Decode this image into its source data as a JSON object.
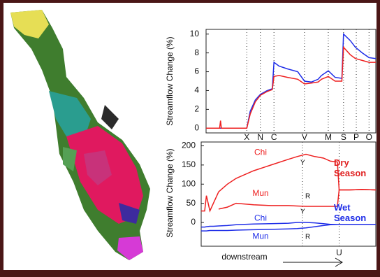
{
  "chart_data": [
    {
      "type": "line",
      "ylabel": "Streamflow Change (%)",
      "xlim": [
        0,
        100
      ],
      "ylim": [
        -0.5,
        10.5
      ],
      "yticks": [
        0,
        2,
        4,
        6,
        8,
        10
      ],
      "xticks": [
        {
          "value": 24,
          "label": "X"
        },
        {
          "value": 32,
          "label": "N"
        },
        {
          "value": 40,
          "label": "C"
        },
        {
          "value": 58,
          "label": "V"
        },
        {
          "value": 72,
          "label": "M"
        },
        {
          "value": 81,
          "label": "S"
        },
        {
          "value": 88.5,
          "label": "P"
        },
        {
          "value": 96,
          "label": "O"
        }
      ],
      "x": [
        0,
        8,
        8.5,
        9,
        24,
        26,
        29,
        32,
        36,
        39,
        40,
        43,
        48,
        54,
        58,
        62,
        66,
        68,
        72,
        76,
        80,
        81,
        85,
        88,
        92,
        96,
        100
      ],
      "series": [
        {
          "color": "#1f2ee8",
          "values": [
            0,
            0,
            0,
            0,
            0,
            1.8,
            3,
            3.6,
            4,
            4.2,
            7,
            6.6,
            6.3,
            6,
            5,
            4.9,
            5.2,
            5.6,
            6.1,
            5.4,
            5.3,
            10,
            9.3,
            8.6,
            8,
            7.5,
            7.4
          ]
        },
        {
          "color": "#ee2020",
          "values": [
            0,
            0,
            0.8,
            0,
            0,
            1.5,
            2.8,
            3.5,
            3.9,
            4.1,
            5.5,
            5.6,
            5.4,
            5.2,
            4.7,
            4.8,
            4.9,
            5.2,
            5.5,
            5,
            5,
            8.6,
            7.8,
            7.4,
            7.2,
            7,
            7
          ]
        }
      ]
    },
    {
      "type": "line",
      "ylabel": "Streamflow Change (%)",
      "xlabel": "downstream",
      "xlim": [
        0,
        100
      ],
      "ylim": [
        -62,
        210
      ],
      "yticks": [
        0,
        50,
        100,
        150,
        200
      ],
      "xticks": [
        {
          "value": 79,
          "label": "U"
        }
      ],
      "markers": [
        58
      ],
      "annotations": [
        "Y",
        "R",
        "Y",
        "R"
      ],
      "season_labels": [
        {
          "text": "Dry Season",
          "color": "#e02020"
        },
        {
          "text": "Wet Season",
          "color": "#1f2ee8"
        }
      ],
      "x": [
        0,
        2,
        3,
        5,
        7,
        10,
        15,
        20,
        30,
        40,
        50,
        55,
        60,
        65,
        70,
        74,
        78,
        79,
        85,
        92,
        100
      ],
      "series": [
        {
          "name": "Chi",
          "color": "#ee2020",
          "values": [
            30,
            30,
            70,
            30,
            50,
            80,
            100,
            115,
            135,
            150,
            165,
            172,
            178,
            172,
            168,
            160,
            158,
            85,
            85,
            86,
            85
          ]
        },
        {
          "name": "Mun",
          "color": "#ee2020",
          "values": [
            null,
            null,
            null,
            null,
            null,
            35,
            40,
            50,
            46,
            44,
            44,
            43,
            42,
            42,
            42,
            42,
            42,
            85,
            85,
            86,
            85
          ]
        },
        {
          "name": "Chi",
          "color": "#1f2ee8",
          "values": [
            -12,
            -12,
            -11,
            -10,
            -10,
            -9,
            -8,
            -6,
            -4,
            -3,
            -2,
            0,
            0,
            -1,
            -3,
            -5,
            -5,
            -5,
            -5,
            -5,
            -5
          ]
        },
        {
          "name": "Mun",
          "color": "#1f2ee8",
          "values": [
            -22,
            -22,
            -22,
            -21,
            -21,
            -21,
            -21,
            -20,
            -19,
            -18,
            -17,
            -16,
            -14,
            -11,
            -8,
            -6,
            -5,
            -5,
            -5,
            -5,
            -5
          ]
        }
      ]
    }
  ]
}
